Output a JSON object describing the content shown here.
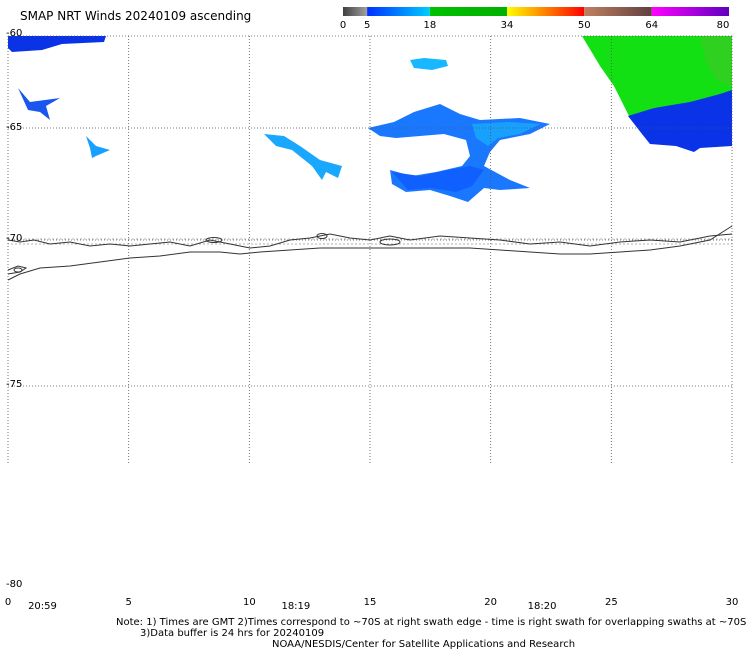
{
  "title": "SMAP NRT Winds 20240109 ascending",
  "colorbar": {
    "labels": [
      "0",
      "5",
      "18",
      "34",
      "50",
      "64",
      "80"
    ],
    "segments": [
      {
        "from": 0,
        "to": 5,
        "colors": [
          "#404040",
          "#a0a0a0"
        ]
      },
      {
        "from": 5,
        "to": 18,
        "colors": [
          "#0030ff",
          "#00ccff"
        ]
      },
      {
        "from": 18,
        "to": 34,
        "colors": [
          "#00c000",
          "#00b000"
        ]
      },
      {
        "from": 34,
        "to": 50,
        "colors": [
          "#ffff00",
          "#ff0000"
        ]
      },
      {
        "from": 50,
        "to": 64,
        "colors": [
          "#c08060",
          "#604040"
        ]
      },
      {
        "from": 64,
        "to": 80,
        "colors": [
          "#ff00ff",
          "#6000c0"
        ]
      }
    ]
  },
  "lat_labels": [
    {
      "value": -60,
      "text": "-60"
    },
    {
      "value": -65,
      "text": "-65"
    },
    {
      "value": -70,
      "text": "-70"
    },
    {
      "value": -75,
      "text": "-75"
    },
    {
      "value": -80,
      "text": "-80"
    }
  ],
  "lon_labels": [
    {
      "value": 0,
      "text": "0"
    },
    {
      "value": 5,
      "text": "5"
    },
    {
      "value": 10,
      "text": "10"
    },
    {
      "value": 15,
      "text": "15"
    },
    {
      "value": 20,
      "text": "20"
    },
    {
      "value": 25,
      "text": "25"
    },
    {
      "value": 30,
      "text": "30"
    }
  ],
  "time_labels": [
    {
      "lon": 0.5,
      "text": "20:59"
    },
    {
      "lon": 11,
      "text": "18:19"
    },
    {
      "lon": 21.2,
      "text": "18:20"
    }
  ],
  "notes": {
    "line1": "Note: 1) Times are GMT 2)Times correspond to ~70S at right swath edge - time is right swath for overlapping swaths at ~70S",
    "line2": "3)Data buffer is 24 hrs for 20240109",
    "line3": "NOAA/NESDIS/Center for Satellite Applications and Research"
  },
  "colors": {
    "dark_blue": "#0a32e6",
    "mid_blue": "#1a6cff",
    "light_blue": "#18b4ff",
    "green": "#10e010",
    "coast": "#333333"
  }
}
